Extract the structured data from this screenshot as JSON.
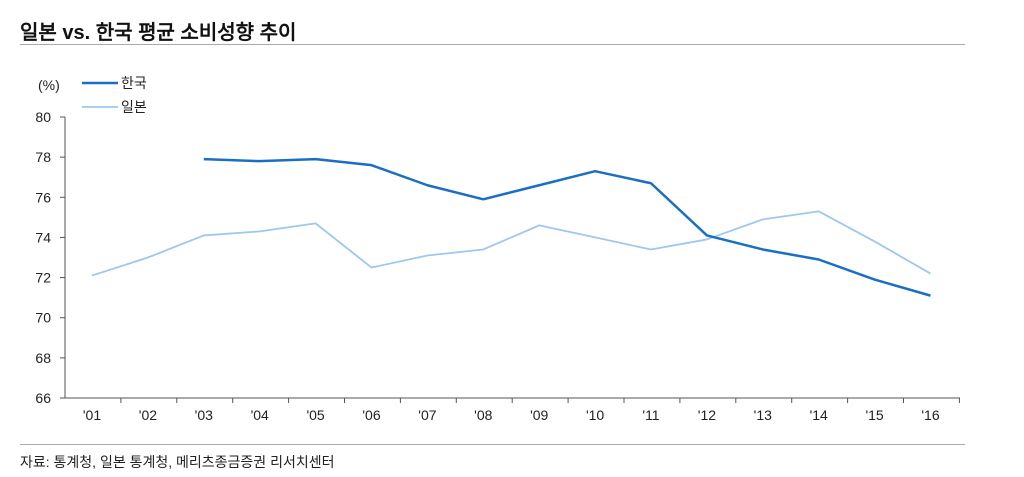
{
  "chart_data": {
    "type": "line",
    "title": "일본 vs. 한국 평균 소비성향 추이",
    "ylabel": "(%)",
    "xlabel": "",
    "categories": [
      "'01",
      "'02",
      "'03",
      "'04",
      "'05",
      "'06",
      "'07",
      "'08",
      "'09",
      "'10",
      "'11",
      "'12",
      "'13",
      "'14",
      "'15",
      "'16"
    ],
    "ylim": [
      66,
      80
    ],
    "yticks": [
      80,
      78,
      76,
      74,
      72,
      70,
      68,
      66
    ],
    "grid": false,
    "legend_position": "top-left",
    "series": [
      {
        "name": "한국",
        "color": "#1a6fc4",
        "values": [
          null,
          null,
          77.9,
          77.8,
          77.9,
          77.6,
          76.6,
          75.9,
          76.6,
          77.3,
          76.7,
          74.1,
          73.4,
          72.9,
          71.9,
          71.1
        ]
      },
      {
        "name": "일본",
        "color": "#9dc8ef",
        "values": [
          72.1,
          73.0,
          74.1,
          74.3,
          74.7,
          72.5,
          73.1,
          73.4,
          74.6,
          74.0,
          73.4,
          73.9,
          74.9,
          75.3,
          73.8,
          72.2
        ]
      }
    ]
  },
  "source": "자료: 통계청, 일본 통계청, 메리츠종금증권 리서치센터"
}
